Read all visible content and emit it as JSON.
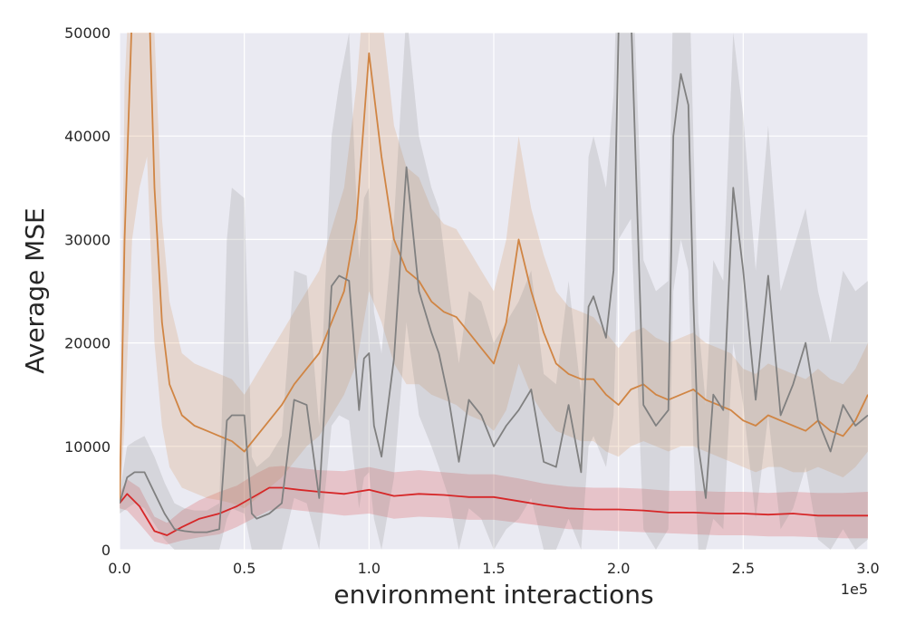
{
  "chart_data": {
    "type": "line",
    "title": "",
    "xlabel": "environment interactions",
    "ylabel": "Average MSE",
    "x_offset_label": "1e5",
    "xlim": [
      0,
      3.0
    ],
    "ylim": [
      0,
      50000
    ],
    "x_ticks": [
      0.0,
      0.5,
      1.0,
      1.5,
      2.0,
      2.5,
      3.0
    ],
    "x_tick_labels": [
      "0.0",
      "0.5",
      "1.0",
      "1.5",
      "2.0",
      "2.5",
      "3.0"
    ],
    "y_ticks": [
      0,
      10000,
      20000,
      30000,
      40000,
      50000
    ],
    "y_tick_labels": [
      "0",
      "10000",
      "20000",
      "30000",
      "40000",
      "50000"
    ],
    "grid": true,
    "background_color": "#eaeaf2",
    "series": [
      {
        "color": "#d62728",
        "band_color": "#d62728",
        "x": [
          0,
          0.03,
          0.08,
          0.14,
          0.19,
          0.25,
          0.32,
          0.4,
          0.47,
          0.55,
          0.6,
          0.65,
          0.72,
          0.8,
          0.9,
          1.0,
          1.1,
          1.2,
          1.3,
          1.4,
          1.5,
          1.6,
          1.7,
          1.8,
          1.9,
          2.0,
          2.1,
          2.2,
          2.3,
          2.4,
          2.5,
          2.6,
          2.7,
          2.8,
          2.9,
          3.0
        ],
        "values": [
          4500,
          5400,
          4200,
          1800,
          1400,
          2200,
          3000,
          3500,
          4200,
          5300,
          6000,
          6000,
          5800,
          5600,
          5400,
          5800,
          5200,
          5400,
          5300,
          5100,
          5100,
          4700,
          4300,
          4000,
          3900,
          3900,
          3800,
          3600,
          3600,
          3500,
          3500,
          3400,
          3500,
          3300,
          3300,
          3300
        ],
        "lower": [
          4000,
          3800,
          2500,
          800,
          500,
          900,
          1200,
          1500,
          2200,
          3200,
          3800,
          4000,
          3800,
          3600,
          3300,
          3500,
          3000,
          3200,
          3100,
          2900,
          2900,
          2600,
          2300,
          2000,
          1900,
          1800,
          1700,
          1600,
          1500,
          1400,
          1400,
          1300,
          1300,
          1200,
          1100,
          1100
        ],
        "upper": [
          5500,
          6800,
          6000,
          3200,
          2600,
          3800,
          4800,
          5600,
          6200,
          7400,
          8000,
          8100,
          7900,
          7700,
          7600,
          8000,
          7500,
          7700,
          7500,
          7300,
          7300,
          6900,
          6400,
          6100,
          6000,
          6000,
          5900,
          5700,
          5700,
          5600,
          5600,
          5500,
          5600,
          5500,
          5500,
          5600
        ]
      },
      {
        "color": "#d08544",
        "band_color": "#d08544",
        "x": [
          0,
          0.02,
          0.05,
          0.08,
          0.11,
          0.14,
          0.17,
          0.2,
          0.25,
          0.3,
          0.35,
          0.4,
          0.45,
          0.5,
          0.55,
          0.6,
          0.65,
          0.7,
          0.75,
          0.8,
          0.85,
          0.9,
          0.95,
          1.0,
          1.05,
          1.1,
          1.15,
          1.2,
          1.25,
          1.3,
          1.35,
          1.4,
          1.45,
          1.5,
          1.55,
          1.6,
          1.65,
          1.7,
          1.75,
          1.8,
          1.85,
          1.9,
          1.95,
          2.0,
          2.05,
          2.1,
          2.15,
          2.2,
          2.25,
          2.3,
          2.35,
          2.4,
          2.45,
          2.5,
          2.55,
          2.6,
          2.65,
          2.7,
          2.75,
          2.8,
          2.85,
          2.9,
          2.95,
          3.0
        ],
        "values": [
          4500,
          30000,
          52000,
          56000,
          60000,
          35000,
          22000,
          16000,
          13000,
          12000,
          11500,
          11000,
          10500,
          9500,
          11000,
          12500,
          14000,
          16000,
          17500,
          19000,
          22000,
          25000,
          32000,
          48000,
          38000,
          30000,
          27000,
          26000,
          24000,
          23000,
          22500,
          21000,
          19500,
          18000,
          22000,
          30000,
          25000,
          21000,
          18000,
          17000,
          16500,
          16500,
          15000,
          14000,
          15500,
          16000,
          15000,
          14500,
          15000,
          15500,
          14500,
          14000,
          13500,
          12500,
          12000,
          13000,
          12500,
          12000,
          11500,
          12500,
          11500,
          11000,
          12500,
          15000
        ],
        "lower": [
          4000,
          12000,
          30000,
          35000,
          38000,
          20000,
          12000,
          8000,
          6000,
          5500,
          5000,
          4800,
          4500,
          4000,
          5000,
          6000,
          7000,
          8500,
          10000,
          11000,
          13000,
          15000,
          18000,
          25000,
          22000,
          18000,
          16000,
          16000,
          15000,
          14500,
          14000,
          13000,
          12500,
          11500,
          13500,
          18000,
          15000,
          13000,
          11500,
          11000,
          10500,
          10500,
          9500,
          9000,
          10000,
          10500,
          10000,
          9500,
          10000,
          10000,
          9500,
          9000,
          8500,
          8000,
          7500,
          8000,
          8000,
          7500,
          7500,
          8000,
          7500,
          7000,
          8000,
          9500
        ],
        "upper": [
          5000,
          45000,
          60000,
          60000,
          60000,
          50000,
          32000,
          24000,
          19000,
          18000,
          17500,
          17000,
          16500,
          15000,
          17000,
          19000,
          21000,
          23000,
          25000,
          27000,
          31000,
          35000,
          45000,
          60000,
          52000,
          41000,
          37000,
          36000,
          33000,
          31500,
          31000,
          29000,
          27000,
          25000,
          30000,
          40000,
          33000,
          28500,
          25000,
          23500,
          23000,
          22500,
          21000,
          19500,
          21000,
          21500,
          20500,
          20000,
          20500,
          21000,
          20000,
          19500,
          19000,
          17500,
          17000,
          18000,
          17500,
          17000,
          16500,
          17500,
          16500,
          16000,
          17500,
          20000
        ]
      },
      {
        "color": "#808080",
        "band_color": "#808080",
        "x": [
          0,
          0.03,
          0.06,
          0.1,
          0.14,
          0.18,
          0.22,
          0.26,
          0.3,
          0.35,
          0.4,
          0.43,
          0.45,
          0.5,
          0.53,
          0.55,
          0.6,
          0.65,
          0.7,
          0.75,
          0.8,
          0.85,
          0.88,
          0.92,
          0.96,
          0.98,
          1.0,
          1.02,
          1.05,
          1.1,
          1.15,
          1.2,
          1.25,
          1.28,
          1.32,
          1.36,
          1.4,
          1.45,
          1.5,
          1.55,
          1.6,
          1.65,
          1.7,
          1.75,
          1.8,
          1.85,
          1.88,
          1.9,
          1.95,
          1.98,
          2.0,
          2.05,
          2.1,
          2.15,
          2.2,
          2.22,
          2.25,
          2.28,
          2.3,
          2.32,
          2.35,
          2.38,
          2.42,
          2.46,
          2.5,
          2.55,
          2.6,
          2.65,
          2.7,
          2.75,
          2.8,
          2.85,
          2.9,
          2.95,
          3.0
        ],
        "values": [
          4500,
          7000,
          7500,
          7500,
          5500,
          3500,
          2000,
          1800,
          1700,
          1700,
          2000,
          12500,
          13000,
          13000,
          3500,
          3000,
          3500,
          4500,
          14500,
          14000,
          5000,
          25500,
          26500,
          26000,
          13500,
          18500,
          19000,
          12000,
          9000,
          18500,
          37000,
          25000,
          21000,
          19000,
          14500,
          8500,
          14500,
          13000,
          10000,
          12000,
          13500,
          15500,
          8500,
          8000,
          14000,
          7500,
          23500,
          24500,
          20500,
          27000,
          50000,
          52000,
          14000,
          12000,
          13500,
          40000,
          46000,
          43000,
          24000,
          10000,
          5000,
          15000,
          13500,
          35000,
          27000,
          14500,
          26500,
          13000,
          16000,
          20000,
          12500,
          9500,
          14000,
          12000,
          13000
        ],
        "lower": [
          3500,
          4000,
          4500,
          4000,
          2500,
          1000,
          0,
          0,
          0,
          0,
          0,
          3000,
          4000,
          3500,
          0,
          0,
          0,
          0,
          5000,
          4500,
          0,
          12000,
          13000,
          12500,
          4000,
          7000,
          7500,
          3000,
          0,
          7000,
          22000,
          13000,
          10000,
          8000,
          5000,
          0,
          4000,
          3000,
          0,
          2000,
          3000,
          5000,
          0,
          0,
          3000,
          0,
          10000,
          11000,
          8000,
          13000,
          30000,
          32000,
          2000,
          0,
          2000,
          25000,
          30000,
          27000,
          10000,
          0,
          0,
          3000,
          2000,
          20000,
          14000,
          3000,
          13000,
          2000,
          4000,
          8000,
          1000,
          0,
          2000,
          0,
          1000
        ],
        "upper": [
          5500,
          10000,
          10500,
          11000,
          9000,
          6500,
          4500,
          4000,
          3800,
          3800,
          4500,
          30000,
          35000,
          34000,
          9000,
          8000,
          9000,
          11000,
          27000,
          26500,
          12000,
          40000,
          45000,
          50000,
          28000,
          34000,
          35000,
          23000,
          19000,
          32000,
          52000,
          40000,
          35000,
          33000,
          25000,
          18000,
          25000,
          24000,
          20000,
          22000,
          24000,
          27000,
          17000,
          16000,
          26000,
          15000,
          38000,
          40000,
          35000,
          44000,
          60000,
          60000,
          28000,
          25000,
          26000,
          55000,
          60000,
          58000,
          40000,
          22000,
          14000,
          28000,
          26000,
          50000,
          42000,
          27000,
          41000,
          25000,
          29000,
          33000,
          25000,
          20000,
          27000,
          25000,
          26000
        ]
      }
    ]
  }
}
